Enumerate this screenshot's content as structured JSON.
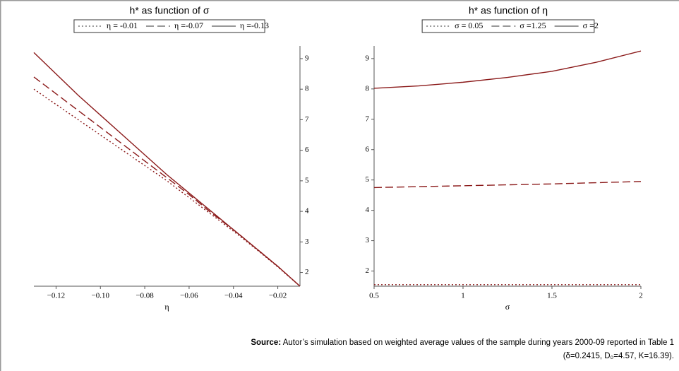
{
  "chart_data": [
    {
      "type": "line",
      "title": "h* as function of σ",
      "x_label": "η",
      "x": [
        -0.13,
        -0.12,
        -0.11,
        -0.1,
        -0.09,
        -0.08,
        -0.07,
        -0.06,
        -0.05,
        -0.04,
        -0.03,
        -0.02,
        -0.01
      ],
      "series": [
        {
          "name": "η = -0.01",
          "color": "#8b1a1a",
          "dash": "dotted",
          "values": [
            8.0,
            7.5,
            7.0,
            6.5,
            6.0,
            5.5,
            5.0,
            4.45,
            3.9,
            3.35,
            2.78,
            2.18,
            1.55
          ]
        },
        {
          "name": "η =-0.07",
          "color": "#8b1a1a",
          "dash": "dashed",
          "values": [
            8.4,
            7.85,
            7.3,
            6.75,
            6.2,
            5.65,
            5.1,
            4.55,
            3.95,
            3.4,
            2.8,
            2.2,
            1.55
          ]
        },
        {
          "name": "η =-0.13",
          "color": "#8b1a1a",
          "dash": "solid",
          "values": [
            9.2,
            8.5,
            7.8,
            7.15,
            6.5,
            5.85,
            5.2,
            4.6,
            4.0,
            3.4,
            2.8,
            2.2,
            1.55
          ]
        }
      ],
      "xlim": [
        -0.13,
        -0.01
      ],
      "xticks": [
        {
          "value": -0.12,
          "label": "−0.12"
        },
        {
          "value": -0.1,
          "label": "−0.10"
        },
        {
          "value": -0.08,
          "label": "−0.08"
        },
        {
          "value": -0.06,
          "label": "−0.06"
        },
        {
          "value": -0.04,
          "label": "−0.04"
        },
        {
          "value": -0.02,
          "label": "−0.02"
        }
      ],
      "ylim": [
        1.55,
        9.3
      ],
      "yticks": [
        2,
        3,
        4,
        5,
        6,
        7,
        8,
        9
      ],
      "y_axis_side": "right",
      "grid": false
    },
    {
      "type": "line",
      "title": "h* as function of η",
      "x_label": "σ",
      "x": [
        0.5,
        0.75,
        1,
        1.25,
        1.5,
        1.75,
        2
      ],
      "series": [
        {
          "name": "σ = 0.05",
          "color": "#8b1a1a",
          "dash": "dotted",
          "values": [
            1.55,
            1.55,
            1.55,
            1.55,
            1.55,
            1.55,
            1.55
          ]
        },
        {
          "name": "σ =1.25",
          "color": "#8b1a1a",
          "dash": "dashed",
          "values": [
            4.75,
            4.78,
            4.81,
            4.84,
            4.87,
            4.91,
            4.95
          ]
        },
        {
          "name": "σ =2",
          "color": "#8b1a1a",
          "dash": "solid",
          "values": [
            8.02,
            8.1,
            8.22,
            8.38,
            8.58,
            8.88,
            9.25
          ]
        }
      ],
      "xlim": [
        0.5,
        2
      ],
      "xticks": [
        0.5,
        1,
        1.5,
        2
      ],
      "ylim": [
        1.5,
        9.3
      ],
      "yticks": [
        2,
        3,
        4,
        5,
        6,
        7,
        8,
        9
      ],
      "y_axis_side": "left",
      "grid": false
    }
  ],
  "source": {
    "label": "Source:",
    "lines": [
      "Autor’s simulation based on weighted average values of the sample during years 2000-09 reported in Table 1",
      "(δ=0.2415, D₀=4.57, K=16.39)."
    ]
  }
}
